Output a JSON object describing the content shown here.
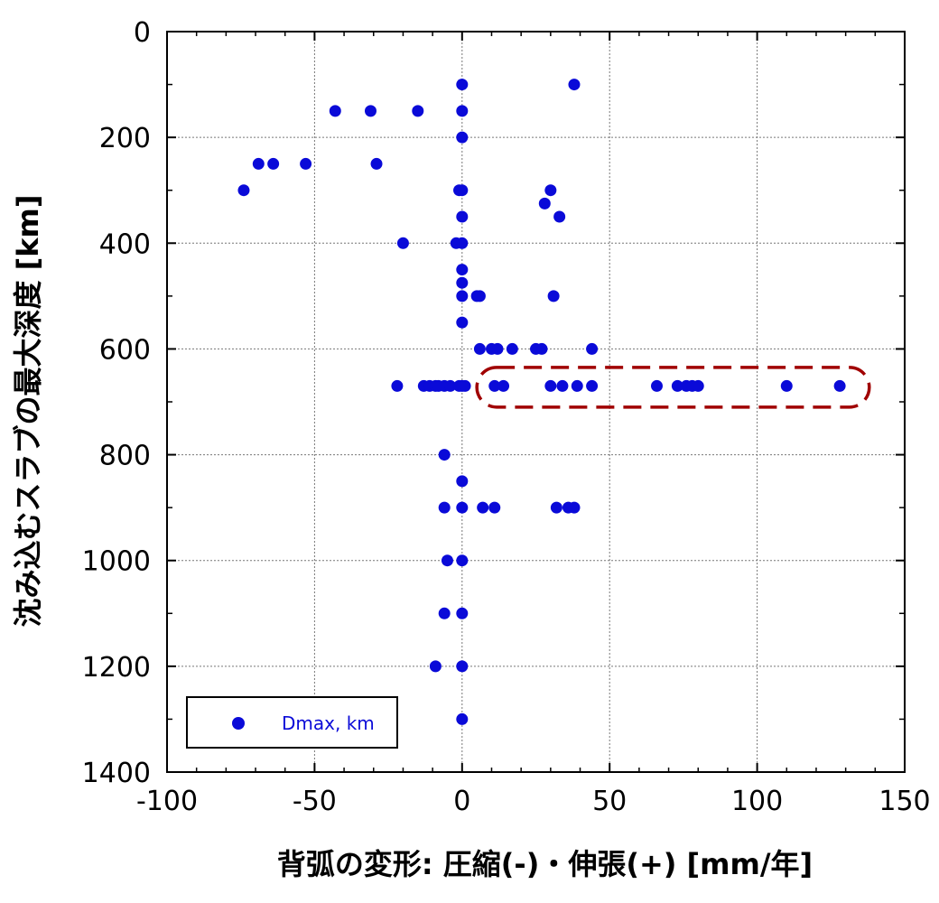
{
  "chart_data": {
    "type": "scatter",
    "xlabel": "背弧の変形: 圧縮(-)・伸張(+) [mm/年]",
    "ylabel": "沈み込むスラブの最大深度 [km]",
    "xlim": [
      -100,
      150
    ],
    "ylim": [
      1400,
      0
    ],
    "y_inverted": true,
    "grid": true,
    "legend_position": "bottom-left",
    "x_ticks": [
      "-100",
      "-50",
      "0",
      "50",
      "100",
      "150"
    ],
    "y_ticks": [
      "0",
      "200",
      "400",
      "600",
      "800",
      "1000",
      "1200",
      "1400"
    ],
    "colors": {
      "points": "#0a0ad8",
      "highlight": "#a00000",
      "legend_text": "#0a0ad8"
    },
    "series": [
      {
        "name": "Dmax, km",
        "points": [
          [
            0,
            100
          ],
          [
            38,
            100
          ],
          [
            -43,
            150
          ],
          [
            -31,
            150
          ],
          [
            -15,
            150
          ],
          [
            0,
            150
          ],
          [
            0,
            200
          ],
          [
            -69,
            250
          ],
          [
            -64,
            250
          ],
          [
            -53,
            250
          ],
          [
            -29,
            250
          ],
          [
            -74,
            300
          ],
          [
            -1,
            300
          ],
          [
            0,
            300
          ],
          [
            30,
            300
          ],
          [
            28,
            325
          ],
          [
            0,
            350
          ],
          [
            33,
            350
          ],
          [
            -20,
            400
          ],
          [
            -2,
            400
          ],
          [
            0,
            400
          ],
          [
            0,
            450
          ],
          [
            0,
            475
          ],
          [
            0,
            500
          ],
          [
            5,
            500
          ],
          [
            6,
            500
          ],
          [
            31,
            500
          ],
          [
            0,
            550
          ],
          [
            6,
            600
          ],
          [
            10,
            600
          ],
          [
            12,
            600
          ],
          [
            17,
            600
          ],
          [
            25,
            600
          ],
          [
            27,
            600
          ],
          [
            44,
            600
          ],
          [
            -22,
            670
          ],
          [
            -13,
            670
          ],
          [
            -11,
            670
          ],
          [
            -9,
            670
          ],
          [
            -8,
            670
          ],
          [
            -6,
            670
          ],
          [
            -4,
            670
          ],
          [
            -1,
            670
          ],
          [
            0,
            670
          ],
          [
            1,
            670
          ],
          [
            11,
            670
          ],
          [
            14,
            670
          ],
          [
            30,
            670
          ],
          [
            34,
            670
          ],
          [
            39,
            670
          ],
          [
            44,
            670
          ],
          [
            66,
            670
          ],
          [
            73,
            670
          ],
          [
            76,
            670
          ],
          [
            78,
            670
          ],
          [
            80,
            670
          ],
          [
            110,
            670
          ],
          [
            128,
            670
          ],
          [
            -6,
            800
          ],
          [
            0,
            850
          ],
          [
            -6,
            900
          ],
          [
            0,
            900
          ],
          [
            7,
            900
          ],
          [
            11,
            900
          ],
          [
            32,
            900
          ],
          [
            36,
            900
          ],
          [
            38,
            900
          ],
          [
            -5,
            1000
          ],
          [
            0,
            1000
          ],
          [
            -6,
            1100
          ],
          [
            0,
            1100
          ],
          [
            -9,
            1200
          ],
          [
            0,
            1200
          ],
          [
            0,
            1300
          ]
        ]
      }
    ],
    "annotation": {
      "type": "dashed-rounded-box",
      "x_range": [
        5,
        138
      ],
      "y_range": [
        635,
        710
      ]
    }
  }
}
